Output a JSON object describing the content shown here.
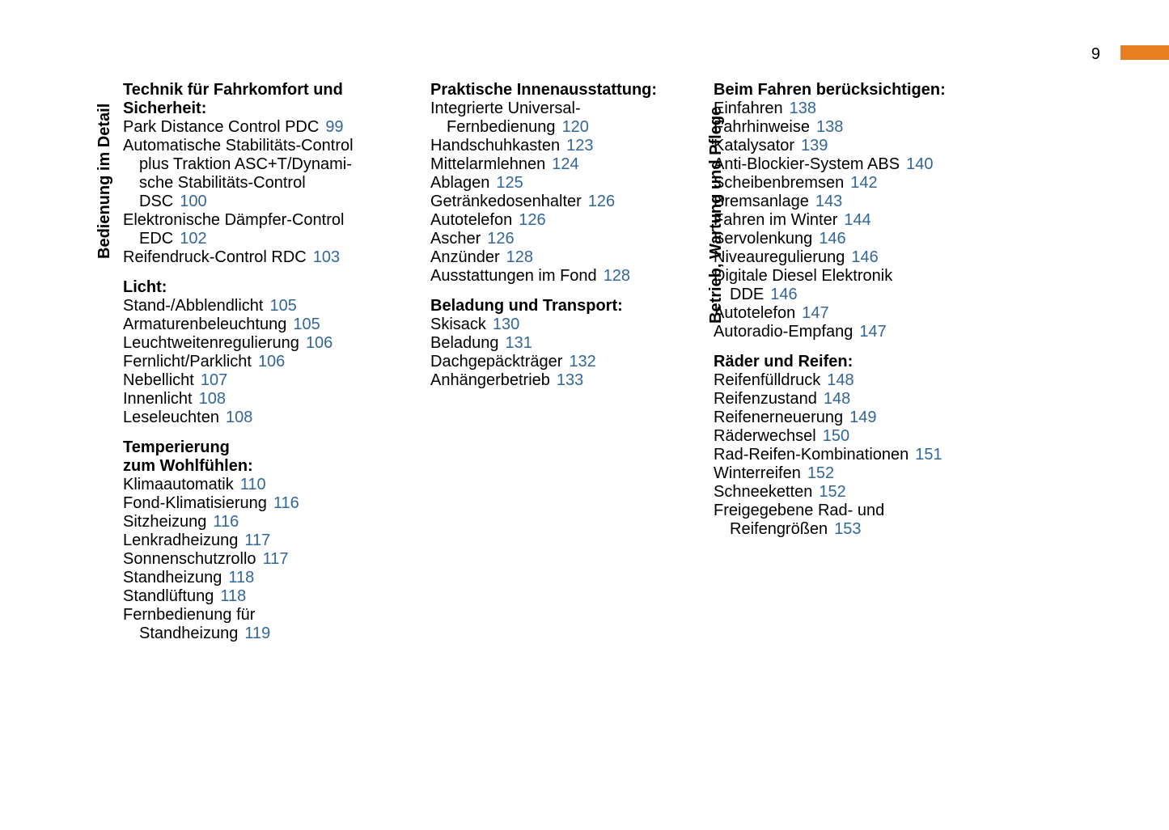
{
  "pageNumber": "9",
  "colors": {
    "link": "#336699",
    "orange": "#e67e22",
    "text": "#000000",
    "background": "#ffffff"
  },
  "verticalLabels": {
    "left": "Bedienung im Detail",
    "right": "Betrieb, Wartung und Pflege"
  },
  "columns": [
    {
      "sections": [
        {
          "heading": [
            "Technik für Fahrkomfort und",
            "Sicherheit:"
          ],
          "entries": [
            {
              "lines": [
                "Park Distance Control PDC"
              ],
              "page": "99"
            },
            {
              "lines": [
                "Automatische Stabilitäts-Control",
                "plus Traktion ASC+T/Dynami-",
                "sche Stabilitäts-Control",
                "DSC"
              ],
              "page": "100"
            },
            {
              "lines": [
                "Elektronische Dämpfer-Control",
                "EDC"
              ],
              "page": "102"
            },
            {
              "lines": [
                "Reifendruck-Control RDC"
              ],
              "page": "103"
            }
          ]
        },
        {
          "heading": [
            "Licht:"
          ],
          "entries": [
            {
              "lines": [
                "Stand-/Abblendlicht"
              ],
              "page": "105"
            },
            {
              "lines": [
                "Armaturenbeleuchtung"
              ],
              "page": "105"
            },
            {
              "lines": [
                "Leuchtweitenregulierung"
              ],
              "page": "106"
            },
            {
              "lines": [
                "Fernlicht/Parklicht"
              ],
              "page": "106"
            },
            {
              "lines": [
                "Nebellicht"
              ],
              "page": "107"
            },
            {
              "lines": [
                "Innenlicht"
              ],
              "page": "108"
            },
            {
              "lines": [
                "Leseleuchten"
              ],
              "page": "108"
            }
          ]
        },
        {
          "heading": [
            "Temperierung",
            "zum Wohlfühlen:"
          ],
          "entries": [
            {
              "lines": [
                "Klimaautomatik"
              ],
              "page": "110"
            },
            {
              "lines": [
                "Fond-Klimatisierung"
              ],
              "page": "116"
            },
            {
              "lines": [
                "Sitzheizung"
              ],
              "page": "116"
            },
            {
              "lines": [
                "Lenkradheizung"
              ],
              "page": "117"
            },
            {
              "lines": [
                "Sonnenschutzrollo"
              ],
              "page": "117"
            },
            {
              "lines": [
                "Standheizung"
              ],
              "page": "118"
            },
            {
              "lines": [
                "Standlüftung"
              ],
              "page": "118"
            },
            {
              "lines": [
                "Fernbedienung für",
                "Standheizung"
              ],
              "page": "119"
            }
          ]
        }
      ]
    },
    {
      "sections": [
        {
          "heading": [
            "Praktische Innenausstattung:"
          ],
          "entries": [
            {
              "lines": [
                "Integrierte Universal-",
                "Fernbedienung"
              ],
              "page": "120"
            },
            {
              "lines": [
                "Handschuhkasten"
              ],
              "page": "123"
            },
            {
              "lines": [
                "Mittelarmlehnen"
              ],
              "page": "124"
            },
            {
              "lines": [
                "Ablagen"
              ],
              "page": "125"
            },
            {
              "lines": [
                "Getränkedosenhalter"
              ],
              "page": "126"
            },
            {
              "lines": [
                "Autotelefon"
              ],
              "page": "126"
            },
            {
              "lines": [
                "Ascher"
              ],
              "page": "126"
            },
            {
              "lines": [
                "Anzünder"
              ],
              "page": "128"
            },
            {
              "lines": [
                "Ausstattungen im Fond"
              ],
              "page": "128"
            }
          ]
        },
        {
          "heading": [
            "Beladung und Transport:"
          ],
          "entries": [
            {
              "lines": [
                "Skisack"
              ],
              "page": "130"
            },
            {
              "lines": [
                "Beladung"
              ],
              "page": "131"
            },
            {
              "lines": [
                "Dachgepäckträger"
              ],
              "page": "132"
            },
            {
              "lines": [
                "Anhängerbetrieb"
              ],
              "page": "133"
            }
          ]
        }
      ]
    },
    {
      "sections": [
        {
          "heading": [
            "Beim Fahren berücksichtigen:"
          ],
          "entries": [
            {
              "lines": [
                "Einfahren"
              ],
              "page": "138"
            },
            {
              "lines": [
                "Fahrhinweise"
              ],
              "page": "138"
            },
            {
              "lines": [
                "Katalysator"
              ],
              "page": "139"
            },
            {
              "lines": [
                "Anti-Blockier-System ABS"
              ],
              "page": "140"
            },
            {
              "lines": [
                "Scheibenbremsen"
              ],
              "page": "142"
            },
            {
              "lines": [
                "Bremsanlage"
              ],
              "page": "143"
            },
            {
              "lines": [
                "Fahren im Winter"
              ],
              "page": "144"
            },
            {
              "lines": [
                "Servolenkung"
              ],
              "page": "146"
            },
            {
              "lines": [
                "Niveauregulierung"
              ],
              "page": "146"
            },
            {
              "lines": [
                "Digitale Diesel Elektronik",
                "DDE"
              ],
              "page": "146"
            },
            {
              "lines": [
                "Autotelefon"
              ],
              "page": "147"
            },
            {
              "lines": [
                "Autoradio-Empfang"
              ],
              "page": "147"
            }
          ]
        },
        {
          "heading": [
            "Räder und Reifen:"
          ],
          "entries": [
            {
              "lines": [
                "Reifenfülldruck"
              ],
              "page": "148"
            },
            {
              "lines": [
                "Reifenzustand"
              ],
              "page": "148"
            },
            {
              "lines": [
                "Reifenerneuerung"
              ],
              "page": "149"
            },
            {
              "lines": [
                "Räderwechsel"
              ],
              "page": "150"
            },
            {
              "lines": [
                "Rad-Reifen-Kombinationen"
              ],
              "page": "151"
            },
            {
              "lines": [
                "Winterreifen"
              ],
              "page": "152"
            },
            {
              "lines": [
                "Schneeketten"
              ],
              "page": "152"
            },
            {
              "lines": [
                "Freigegebene Rad- und",
                "Reifengrößen"
              ],
              "page": "153"
            }
          ]
        }
      ]
    }
  ]
}
